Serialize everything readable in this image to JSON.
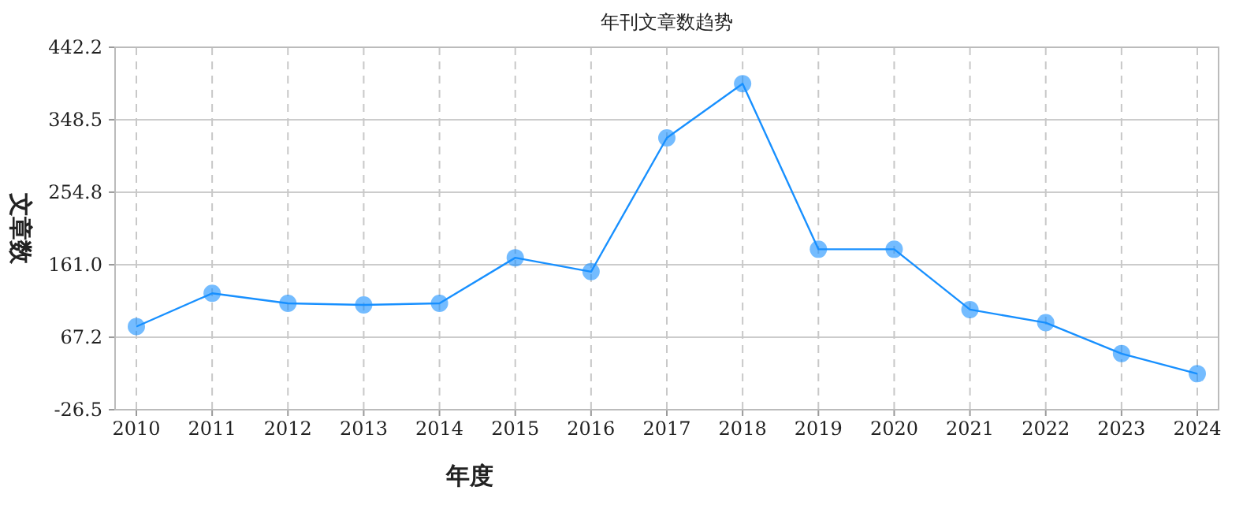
{
  "chart_data": {
    "type": "line",
    "title": "年刊文章数趋势",
    "xlabel": "年度",
    "ylabel": "文章数",
    "categories": [
      "2010",
      "2011",
      "2012",
      "2013",
      "2014",
      "2015",
      "2016",
      "2017",
      "2018",
      "2019",
      "2020",
      "2021",
      "2022",
      "2023",
      "2024"
    ],
    "series": [
      {
        "color": "#1890ff",
        "values": [
          81,
          124,
          111,
          109,
          111,
          170,
          152,
          325,
          395,
          181,
          181,
          103,
          86,
          46,
          20
        ]
      }
    ],
    "ylim": [
      -26.5,
      442.2
    ],
    "yticks": [
      -26.5,
      67.2,
      {
        "value": 161,
        "label": "161.0"
      },
      254.8,
      348.5,
      442.2
    ],
    "grid": true,
    "marker": "circle",
    "line_style": "solid"
  }
}
